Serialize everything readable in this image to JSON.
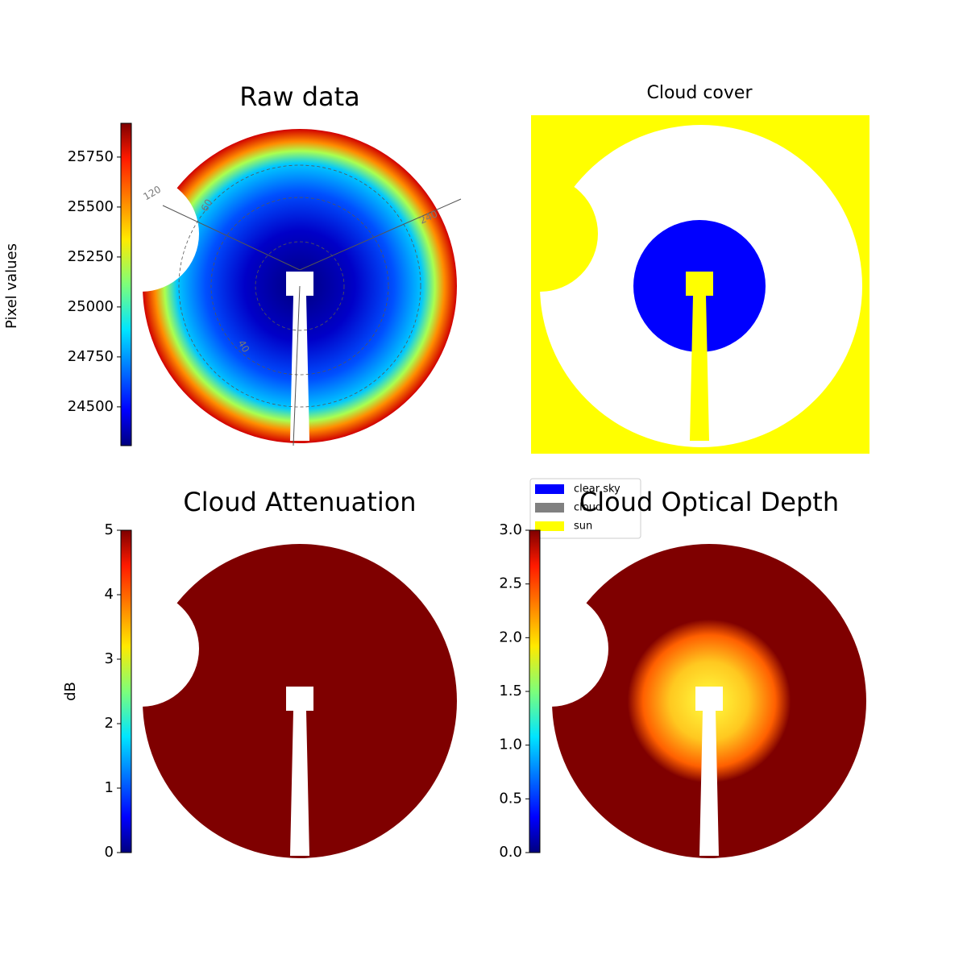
{
  "chart_data": [
    {
      "type": "image",
      "title": "Raw data",
      "ylabel": "Pixel values",
      "colormap": "jet",
      "ylim": [
        24306,
        25919
      ],
      "yticks": [
        24500,
        24750,
        25000,
        25250,
        25500,
        25750
      ],
      "annotations": [
        "120",
        "60",
        "240",
        "40"
      ]
    },
    {
      "type": "image",
      "title": "Cloud cover",
      "categories": [
        "clear sky",
        "cloud",
        "sun"
      ],
      "colors": [
        "#0000ff",
        "#808080",
        "#ffff00"
      ]
    },
    {
      "type": "image",
      "title": "Cloud Attenuation",
      "ylabel": "dB",
      "colormap": "jet",
      "ylim": [
        0,
        5
      ],
      "yticks": [
        0,
        1,
        2,
        3,
        4,
        5
      ]
    },
    {
      "type": "image",
      "title": "Cloud Optical Depth",
      "colormap": "jet",
      "ylim": [
        0,
        3
      ],
      "yticks": [
        {
          "value": 0,
          "label": "0.0"
        },
        0.5,
        {
          "value": 1,
          "label": "1.0"
        },
        1.5,
        {
          "value": 2,
          "label": "2.0"
        },
        2.5,
        {
          "value": 3,
          "label": "3.0"
        }
      ]
    }
  ]
}
